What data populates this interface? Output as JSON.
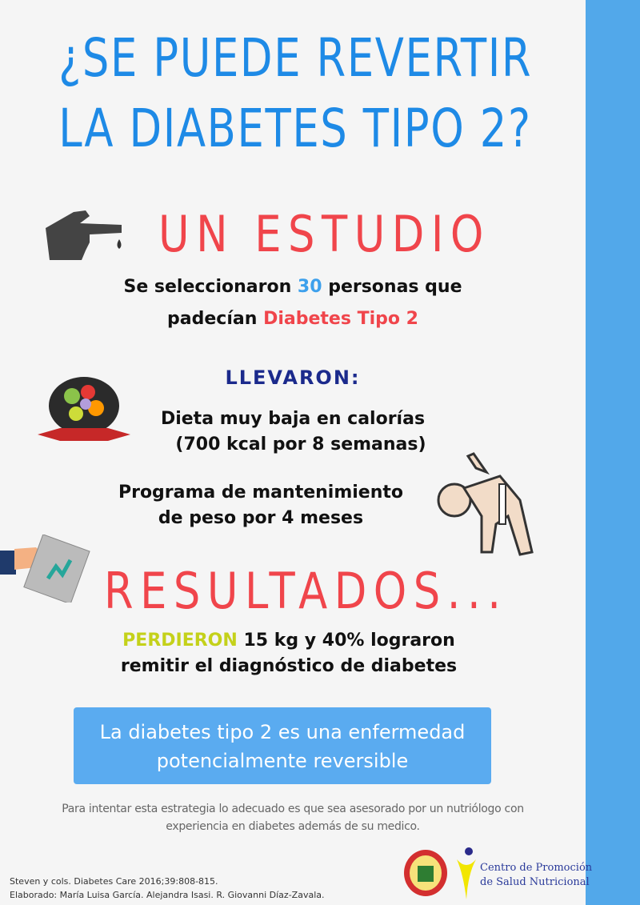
{
  "title": {
    "line1": "¿SE PUEDE REVERTIR",
    "line2": "LA DIABETES TIPO 2?"
  },
  "study": {
    "heading": "UN ESTUDIO",
    "line1_pre": "Se seleccionaron ",
    "line1_num": "30",
    "line1_post": " personas que",
    "line2_pre": "padecían ",
    "line2_em": "Diabetes Tipo 2"
  },
  "llevaron": {
    "heading": "LLEVARON:",
    "diet_line1": "Dieta muy baja en calorías",
    "diet_line2": "(700 kcal por 8 semanas)",
    "program_line1": "Programa de mantenimiento",
    "program_line2": "de peso por 4 meses"
  },
  "results": {
    "heading": "RESULTADOS...",
    "line1_em": "PERDIERON",
    "line1_post": " 15 kg y 40% lograron",
    "line2": "remitir el diagnóstico de diabetes"
  },
  "callout": {
    "line1": "La diabetes tipo 2 es una enfermedad",
    "line2": "potencialmente reversible"
  },
  "note": {
    "line1": "Para intentar esta estrategia lo adecuado es que sea asesorado por un nutriólogo con",
    "line2": "experiencia en diabetes además de su medico."
  },
  "citation": {
    "line1": "Steven y cols. Diabetes Care 2016;39:808-815.",
    "line2": "Elaborado: María Luisa García. Alejandra Isasi. R. Giovanni Díaz-Zavala."
  },
  "logos": {
    "university_seal": "university-seal",
    "center_line1": "Centro de Promoción",
    "center_line2": "de Salud Nutricional"
  },
  "colors": {
    "title": "#1e8ae6",
    "accent_strip": "#52a8ea",
    "red": "#f0454b",
    "navy": "#1b2a8c",
    "yellow": "#c4d11a",
    "callout": "#5aabf0"
  }
}
